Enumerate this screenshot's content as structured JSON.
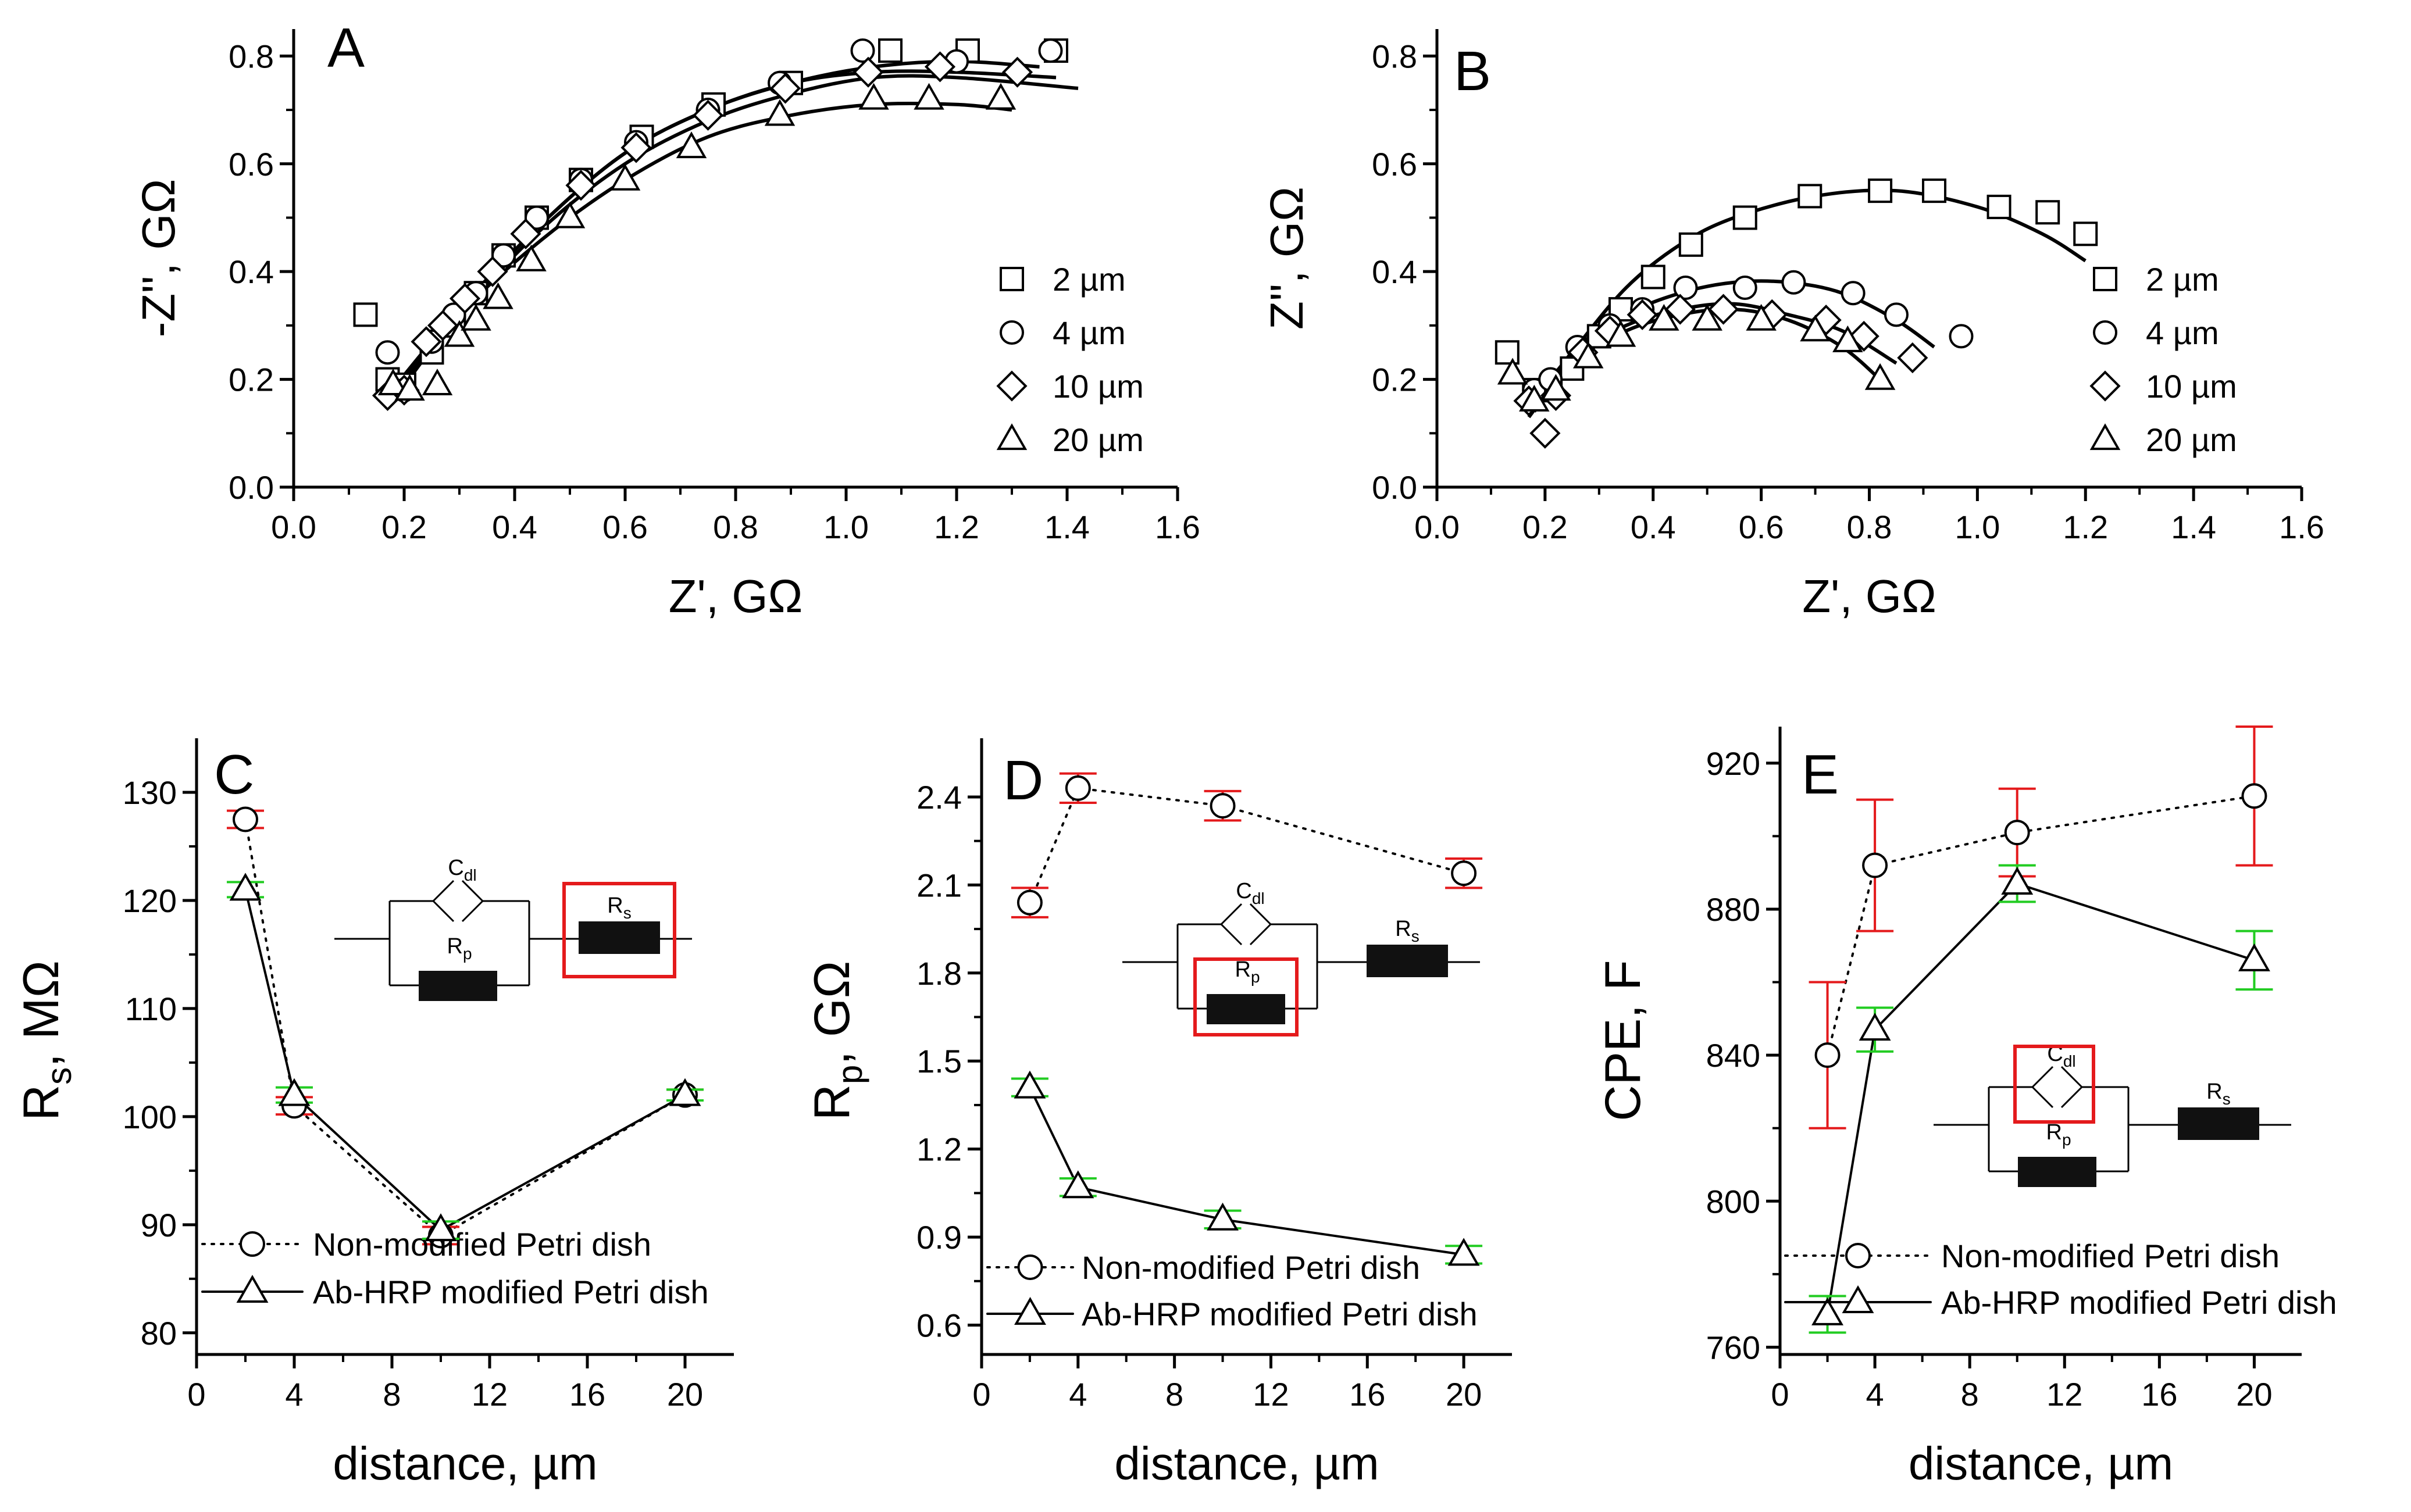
{
  "colors": {
    "axis": "#000000",
    "non_modified_error": "#e41a1c",
    "modified_error": "#22cc22",
    "highlight_box": "#e41a1c",
    "element_fill": "#111111"
  },
  "chart_data": [
    {
      "panel": "A",
      "type": "scatter",
      "xlabel": "Z', GΩ",
      "ylabel": "-Z'', GΩ",
      "xlim": [
        0.0,
        1.6
      ],
      "ylim": [
        0.0,
        0.85
      ],
      "xticks": [
        0.0,
        0.2,
        0.4,
        0.6,
        0.8,
        1.0,
        1.2,
        1.4,
        1.6
      ],
      "yticks": [
        0.0,
        0.2,
        0.4,
        0.6,
        0.8
      ],
      "xtick_labels": [
        "0.0",
        "0.2",
        "0.4",
        "0.6",
        "0.8",
        "1.0",
        "1.2",
        "1.4",
        "1.6"
      ],
      "ytick_labels": [
        "0.0",
        "0.2",
        "0.4",
        "0.6",
        "0.8"
      ],
      "legend": [
        "2 µm",
        "4 µm",
        "10 µm",
        "20 µm"
      ],
      "series": [
        {
          "name": "2 µm",
          "marker": "square",
          "x": [
            0.13,
            0.17,
            0.2,
            0.25,
            0.29,
            0.33,
            0.38,
            0.44,
            0.52,
            0.63,
            0.76,
            0.9,
            1.08,
            1.22,
            1.38
          ],
          "y": [
            0.32,
            0.2,
            0.19,
            0.25,
            0.3,
            0.36,
            0.43,
            0.5,
            0.57,
            0.65,
            0.71,
            0.75,
            0.81,
            0.81,
            0.81
          ],
          "fit": {
            "x": [
              0.17,
              0.3,
              0.45,
              0.6,
              0.75,
              0.9,
              1.05,
              1.2,
              1.35
            ],
            "y": [
              0.17,
              0.33,
              0.49,
              0.62,
              0.7,
              0.75,
              0.78,
              0.79,
              0.78
            ]
          }
        },
        {
          "name": "4 µm",
          "marker": "circle",
          "x": [
            0.17,
            0.2,
            0.25,
            0.29,
            0.33,
            0.38,
            0.44,
            0.52,
            0.62,
            0.75,
            0.88,
            1.03,
            1.2,
            1.37
          ],
          "y": [
            0.25,
            0.18,
            0.27,
            0.32,
            0.36,
            0.43,
            0.5,
            0.57,
            0.64,
            0.7,
            0.75,
            0.81,
            0.79,
            0.81
          ],
          "fit": {
            "x": [
              0.17,
              0.3,
              0.45,
              0.6,
              0.75,
              0.9,
              1.05,
              1.2,
              1.38
            ],
            "y": [
              0.17,
              0.33,
              0.49,
              0.62,
              0.7,
              0.75,
              0.77,
              0.77,
              0.76
            ]
          }
        },
        {
          "name": "10 µm",
          "marker": "diamond",
          "x": [
            0.17,
            0.2,
            0.24,
            0.27,
            0.31,
            0.36,
            0.42,
            0.52,
            0.62,
            0.75,
            0.89,
            1.04,
            1.17,
            1.31
          ],
          "y": [
            0.17,
            0.18,
            0.27,
            0.3,
            0.35,
            0.4,
            0.47,
            0.56,
            0.63,
            0.69,
            0.74,
            0.77,
            0.78,
            0.77
          ],
          "fit": {
            "x": [
              0.17,
              0.3,
              0.45,
              0.6,
              0.75,
              0.9,
              1.05,
              1.2,
              1.42
            ],
            "y": [
              0.16,
              0.32,
              0.48,
              0.6,
              0.68,
              0.73,
              0.76,
              0.76,
              0.74
            ]
          }
        },
        {
          "name": "20 µm",
          "marker": "triangle",
          "x": [
            0.18,
            0.21,
            0.26,
            0.3,
            0.33,
            0.37,
            0.43,
            0.5,
            0.6,
            0.72,
            0.88,
            1.05,
            1.15,
            1.28
          ],
          "y": [
            0.19,
            0.18,
            0.19,
            0.28,
            0.31,
            0.35,
            0.42,
            0.5,
            0.57,
            0.63,
            0.69,
            0.72,
            0.72,
            0.72
          ],
          "fit": {
            "x": [
              0.18,
              0.3,
              0.45,
              0.6,
              0.75,
              0.9,
              1.05,
              1.2,
              1.3
            ],
            "y": [
              0.16,
              0.32,
              0.46,
              0.57,
              0.65,
              0.69,
              0.71,
              0.71,
              0.7
            ]
          }
        }
      ]
    },
    {
      "panel": "B",
      "type": "scatter",
      "xlabel": "Z', GΩ",
      "ylabel": "Z'', GΩ",
      "xlim": [
        0.0,
        1.6
      ],
      "ylim": [
        0.0,
        0.85
      ],
      "xticks": [
        0.0,
        0.2,
        0.4,
        0.6,
        0.8,
        1.0,
        1.2,
        1.4,
        1.6
      ],
      "yticks": [
        0.0,
        0.2,
        0.4,
        0.6,
        0.8
      ],
      "xtick_labels": [
        "0.0",
        "0.2",
        "0.4",
        "0.6",
        "0.8",
        "1.0",
        "1.2",
        "1.4",
        "1.6"
      ],
      "ytick_labels": [
        "0.0",
        "0.2",
        "0.4",
        "0.6",
        "0.8"
      ],
      "legend": [
        "2 µm",
        "4 µm",
        "10 µm",
        "20 µm"
      ],
      "series": [
        {
          "name": "2 µm",
          "marker": "square",
          "x": [
            0.13,
            0.18,
            0.21,
            0.25,
            0.3,
            0.34,
            0.4,
            0.47,
            0.57,
            0.69,
            0.82,
            0.92,
            1.04,
            1.13,
            1.2
          ],
          "y": [
            0.25,
            0.18,
            0.18,
            0.22,
            0.28,
            0.33,
            0.39,
            0.45,
            0.5,
            0.54,
            0.55,
            0.55,
            0.52,
            0.51,
            0.47
          ],
          "fit": {
            "x": [
              0.17,
              0.25,
              0.35,
              0.45,
              0.55,
              0.7,
              0.85,
              1.0,
              1.12,
              1.2
            ],
            "y": [
              0.15,
              0.25,
              0.37,
              0.45,
              0.5,
              0.54,
              0.55,
              0.52,
              0.47,
              0.42
            ]
          }
        },
        {
          "name": "4 µm",
          "marker": "circle",
          "x": [
            0.18,
            0.21,
            0.26,
            0.32,
            0.38,
            0.46,
            0.57,
            0.66,
            0.77,
            0.85,
            0.97
          ],
          "y": [
            0.18,
            0.2,
            0.26,
            0.3,
            0.33,
            0.37,
            0.37,
            0.38,
            0.36,
            0.32,
            0.28
          ],
          "fit": {
            "x": [
              0.18,
              0.25,
              0.35,
              0.45,
              0.55,
              0.65,
              0.75,
              0.85,
              0.92
            ],
            "y": [
              0.14,
              0.25,
              0.32,
              0.36,
              0.38,
              0.38,
              0.36,
              0.31,
              0.26
            ]
          }
        },
        {
          "name": "10 µm",
          "marker": "diamond",
          "x": [
            0.17,
            0.2,
            0.22,
            0.27,
            0.32,
            0.38,
            0.45,
            0.53,
            0.62,
            0.72,
            0.79,
            0.88
          ],
          "y": [
            0.16,
            0.1,
            0.17,
            0.25,
            0.29,
            0.32,
            0.33,
            0.33,
            0.32,
            0.31,
            0.28,
            0.24
          ],
          "fit": {
            "x": [
              0.17,
              0.25,
              0.35,
              0.45,
              0.55,
              0.65,
              0.75,
              0.85
            ],
            "y": [
              0.13,
              0.24,
              0.3,
              0.33,
              0.34,
              0.32,
              0.29,
              0.23
            ]
          }
        },
        {
          "name": "20 µm",
          "marker": "triangle",
          "x": [
            0.14,
            0.18,
            0.22,
            0.28,
            0.34,
            0.42,
            0.5,
            0.6,
            0.7,
            0.76,
            0.82
          ],
          "y": [
            0.21,
            0.16,
            0.18,
            0.24,
            0.28,
            0.31,
            0.31,
            0.31,
            0.29,
            0.27,
            0.2
          ],
          "fit": {
            "x": [
              0.17,
              0.25,
              0.35,
              0.45,
              0.55,
              0.65,
              0.75,
              0.83
            ],
            "y": [
              0.13,
              0.23,
              0.29,
              0.32,
              0.33,
              0.31,
              0.26,
              0.19
            ]
          }
        }
      ]
    },
    {
      "panel": "C",
      "type": "line",
      "xlabel": "distance, µm",
      "ylabel_main": "R",
      "ylabel_sub": "s",
      "ylabel_rest": ", MΩ",
      "xlim": [
        0,
        22
      ],
      "ylim": [
        78,
        135
      ],
      "xticks": [
        0,
        4,
        8,
        12,
        16,
        20
      ],
      "yticks": [
        80,
        90,
        100,
        110,
        120,
        130
      ],
      "xtick_labels": [
        "0",
        "4",
        "8",
        "12",
        "16",
        "20"
      ],
      "ytick_labels": [
        "80",
        "90",
        "100",
        "110",
        "120",
        "130"
      ],
      "x": [
        2,
        4,
        10,
        20
      ],
      "series": [
        {
          "name": "Non-modified Petri dish",
          "marker": "circle",
          "line": "dotted",
          "values": [
            127.5,
            101,
            89,
            102
          ],
          "errors": [
            0.8,
            0.8,
            0.8,
            0.5
          ]
        },
        {
          "name": "Ab-HRP modified Petri dish",
          "marker": "triangle",
          "line": "solid",
          "values": [
            121,
            102,
            89.5,
            102
          ],
          "errors": [
            0.7,
            0.7,
            0.8,
            0.5
          ]
        }
      ],
      "inset": {
        "cdl": "C",
        "cdl_sub": "dl",
        "rp": "R",
        "rp_sub": "p",
        "rs": "R",
        "rs_sub": "s",
        "highlight": "Rs"
      }
    },
    {
      "panel": "D",
      "type": "line",
      "xlabel": "distance, µm",
      "ylabel_main": "R",
      "ylabel_sub": "p",
      "ylabel_rest": ", GΩ",
      "xlim": [
        0,
        22
      ],
      "ylim": [
        0.5,
        2.6
      ],
      "xticks": [
        0,
        4,
        8,
        12,
        16,
        20
      ],
      "yticks": [
        0.6,
        0.9,
        1.2,
        1.5,
        1.8,
        2.1,
        2.4
      ],
      "xtick_labels": [
        "0",
        "4",
        "8",
        "12",
        "16",
        "20"
      ],
      "ytick_labels": [
        "0.6",
        "0.9",
        "1.2",
        "1.5",
        "1.8",
        "2.1",
        "2.4"
      ],
      "x": [
        2,
        4,
        10,
        20
      ],
      "series": [
        {
          "name": "Non-modified Petri dish",
          "marker": "circle",
          "line": "dotted",
          "values": [
            2.04,
            2.43,
            2.37,
            2.14
          ],
          "errors": [
            0.05,
            0.05,
            0.05,
            0.05
          ]
        },
        {
          "name": "Ab-HRP modified Petri dish",
          "marker": "triangle",
          "line": "solid",
          "values": [
            1.41,
            1.07,
            0.96,
            0.84
          ],
          "errors": [
            0.03,
            0.03,
            0.03,
            0.03
          ]
        }
      ],
      "inset": {
        "cdl": "C",
        "cdl_sub": "dl",
        "rp": "R",
        "rp_sub": "p",
        "rs": "R",
        "rs_sub": "s",
        "highlight": "Rp"
      }
    },
    {
      "panel": "E",
      "type": "line",
      "xlabel": "distance, µm",
      "ylabel_main": "CPE, F",
      "ylabel_sub": "",
      "ylabel_rest": "",
      "xlim": [
        0,
        22
      ],
      "ylim": [
        758,
        930
      ],
      "xticks": [
        0,
        4,
        8,
        12,
        16,
        20
      ],
      "yticks": [
        760,
        800,
        840,
        880,
        920
      ],
      "xtick_labels": [
        "0",
        "4",
        "8",
        "12",
        "16",
        "20"
      ],
      "ytick_labels": [
        "760",
        "800",
        "840",
        "880",
        "920"
      ],
      "x": [
        2,
        4,
        10,
        20
      ],
      "series": [
        {
          "name": "Non-modified Petri dish",
          "marker": "circle",
          "line": "dotted",
          "values": [
            840,
            892,
            901,
            911
          ],
          "errors": [
            20,
            18,
            12,
            19
          ]
        },
        {
          "name": "Ab-HRP modified Petri dish",
          "marker": "triangle",
          "line": "solid",
          "values": [
            769,
            847,
            887,
            866
          ],
          "errors": [
            5,
            6,
            5,
            8
          ]
        }
      ],
      "inset": {
        "cdl": "C",
        "cdl_sub": "dl",
        "rp": "R",
        "rp_sub": "p",
        "rs": "R",
        "rs_sub": "s",
        "highlight": "Cdl"
      }
    }
  ]
}
